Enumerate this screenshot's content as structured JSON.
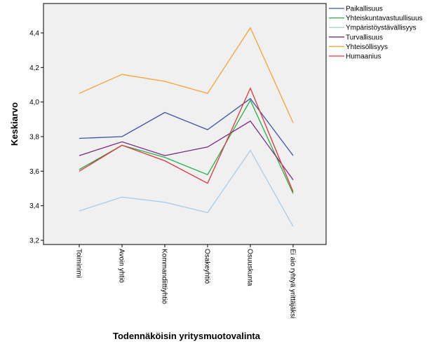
{
  "chart_data": {
    "type": "line",
    "xlabel": "Todennäköisin yritysmuotovalinta",
    "ylabel": "Keskiarvo",
    "categories": [
      "Toiminimi",
      "Avoin yhtiö",
      "Kommandiittiyhtiö",
      "Osakeyhtiö",
      "Osuuskunta",
      "Ei aio ryhtyä yrittäjäksi"
    ],
    "ylim": [
      3.2,
      4.55
    ],
    "yticks": [
      "3,2",
      "3,4",
      "3,6",
      "3,8",
      "4,0",
      "4,2",
      "4,4"
    ],
    "grid": false,
    "legend_position": "top-right",
    "series": [
      {
        "name": "Paikallisuus",
        "color": "#3c54a4",
        "values": [
          3.79,
          3.8,
          3.94,
          3.84,
          4.02,
          3.69
        ]
      },
      {
        "name": "Yhteiskuntavastuullisuus",
        "color": "#21b14b",
        "values": [
          3.61,
          3.75,
          3.68,
          3.58,
          4.01,
          3.47
        ]
      },
      {
        "name": "Ympäristöystävällisyys",
        "color": "#a6cde9",
        "values": [
          3.37,
          3.45,
          3.42,
          3.36,
          3.72,
          3.28
        ]
      },
      {
        "name": "Turvallisuus",
        "color": "#7b2a7d",
        "values": [
          3.69,
          3.77,
          3.69,
          3.74,
          3.89,
          3.55
        ]
      },
      {
        "name": "Yhteisöllisyys",
        "color": "#f7a233",
        "values": [
          4.05,
          4.16,
          4.12,
          4.05,
          4.43,
          3.88
        ]
      },
      {
        "name": "Humaanius",
        "color": "#e2333a",
        "values": [
          3.6,
          3.75,
          3.66,
          3.53,
          4.08,
          3.48
        ]
      }
    ]
  }
}
